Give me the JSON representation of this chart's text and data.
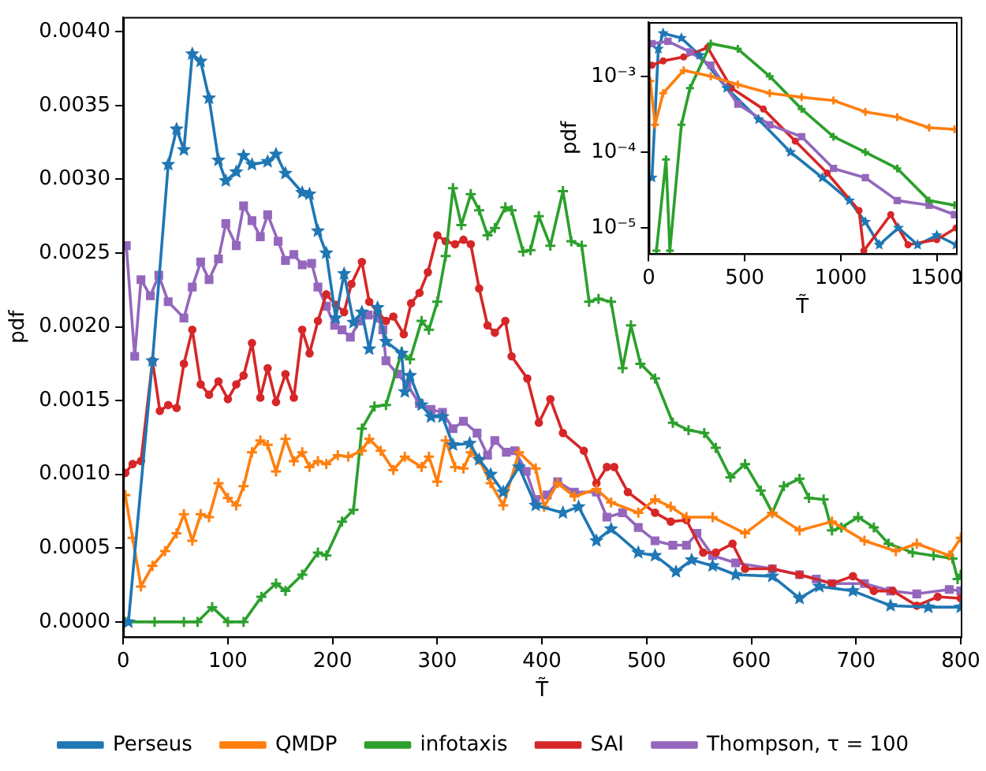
{
  "chart_data": [
    {
      "type": "line",
      "xlabel": "T̃",
      "ylabel": "pdf",
      "xlim": [
        0,
        800
      ],
      "xticks": [
        0,
        100,
        200,
        300,
        400,
        500,
        600,
        700,
        800
      ],
      "ylim": [
        -0.0001,
        0.0041
      ],
      "yticks": [
        {
          "value": 0,
          "label": "0.0000"
        },
        {
          "value": 0.0005,
          "label": "0.0005"
        },
        {
          "value": 0.001,
          "label": "0.0010"
        },
        {
          "value": 0.0015,
          "label": "0.0015"
        },
        {
          "value": 0.002,
          "label": "0.0020"
        },
        {
          "value": 0.0025,
          "label": "0.0025"
        },
        {
          "value": 0.003,
          "label": "0.0030"
        },
        {
          "value": 0.0035,
          "label": "0.0035"
        },
        {
          "value": 0.004,
          "label": "0.0040"
        }
      ],
      "grid": false,
      "legend": "bottom",
      "line_style": "solid",
      "series": [
        {
          "name": "Perseus",
          "color": "#1f77b4",
          "marker": "star",
          "x": [
            5,
            28,
            43,
            51,
            58,
            66,
            74,
            82,
            91,
            98,
            108,
            115,
            123,
            138,
            146,
            155,
            171,
            178,
            186,
            194,
            203,
            211,
            220,
            228,
            235,
            243,
            251,
            266,
            269,
            274,
            285,
            294,
            305,
            315,
            331,
            340,
            351,
            363,
            378,
            394,
            420,
            435,
            452,
            466,
            492,
            508,
            528,
            543,
            563,
            585,
            620,
            646,
            665,
            697,
            733,
            769,
            800
          ],
          "values": [
            0,
            0.00177,
            0.0031,
            0.00334,
            0.0032,
            0.00385,
            0.0038,
            0.00355,
            0.00313,
            0.00299,
            0.00305,
            0.00316,
            0.0031,
            0.00312,
            0.00317,
            0.00304,
            0.00291,
            0.0029,
            0.00265,
            0.0025,
            0.00206,
            0.00236,
            0.00203,
            0.0021,
            0.00185,
            0.00213,
            0.0019,
            0.00182,
            0.00156,
            0.00167,
            0.00147,
            0.00139,
            0.00139,
            0.0012,
            0.00121,
            0.0011,
            0.001,
            0.00088,
            0.00105,
            0.00079,
            0.00074,
            0.00078,
            0.00055,
            0.00063,
            0.00047,
            0.00045,
            0.00034,
            0.00042,
            0.00038,
            0.00032,
            0.00031,
            0.00016,
            0.00024,
            0.00021,
            0.00011,
            0.0001,
            0.0001
          ]
        },
        {
          "name": "QMDP",
          "color": "#ff7f0e",
          "marker": "cross",
          "x": [
            2,
            9,
            17,
            28,
            40,
            51,
            58,
            66,
            74,
            82,
            91,
            100,
            108,
            115,
            123,
            131,
            138,
            146,
            155,
            163,
            171,
            178,
            186,
            194,
            205,
            215,
            228,
            235,
            246,
            258,
            269,
            285,
            292,
            300,
            308,
            317,
            325,
            332,
            340,
            351,
            363,
            378,
            394,
            402,
            415,
            431,
            452,
            466,
            492,
            508,
            523,
            538,
            563,
            594,
            620,
            646,
            677,
            708,
            738,
            758,
            789,
            800
          ],
          "values": [
            0.00086,
            0.00057,
            0.00024,
            0.00038,
            0.00048,
            0.0006,
            0.00073,
            0.00055,
            0.00073,
            0.00071,
            0.00094,
            0.00084,
            0.00079,
            0.00092,
            0.00115,
            0.00123,
            0.0012,
            0.00102,
            0.00124,
            0.00109,
            0.00115,
            0.00105,
            0.00109,
            0.00107,
            0.00113,
            0.00112,
            0.00116,
            0.00124,
            0.00116,
            0.00103,
            0.00112,
            0.00105,
            0.00112,
            0.00095,
            0.00123,
            0.00105,
            0.00104,
            0.00115,
            0.0011,
            0.00094,
            0.00079,
            0.00115,
            0.00104,
            0.00078,
            0.00094,
            0.00085,
            0.0009,
            0.00081,
            0.00074,
            0.00083,
            0.00078,
            0.00071,
            0.00071,
            0.0006,
            0.00074,
            0.00062,
            0.00068,
            0.00055,
            0.00048,
            0.00053,
            0.00045,
            0.00057
          ]
        },
        {
          "name": "infotaxis",
          "color": "#2ca02c",
          "marker": "cross",
          "x": [
            2,
            30,
            58,
            71,
            85,
            100,
            115,
            132,
            146,
            155,
            171,
            186,
            194,
            209,
            220,
            228,
            240,
            251,
            266,
            274,
            285,
            292,
            300,
            308,
            315,
            323,
            332,
            340,
            348,
            355,
            365,
            371,
            382,
            389,
            397,
            408,
            420,
            428,
            438,
            445,
            454,
            466,
            477,
            485,
            494,
            508,
            525,
            540,
            555,
            566,
            580,
            594,
            609,
            620,
            631,
            646,
            655,
            669,
            677,
            686,
            702,
            717,
            731,
            754,
            774,
            792,
            797,
            800
          ],
          "values": [
            0,
            0,
            0,
            0,
            0.0001,
            0,
            0,
            0.00017,
            0.00026,
            0.00021,
            0.00032,
            0.00047,
            0.00045,
            0.00068,
            0.00076,
            0.00131,
            0.00146,
            0.00147,
            0.00183,
            0.00178,
            0.00204,
            0.00198,
            0.00217,
            0.00248,
            0.00294,
            0.00269,
            0.0029,
            0.00279,
            0.00262,
            0.00267,
            0.00281,
            0.00279,
            0.00251,
            0.00252,
            0.00275,
            0.00255,
            0.00292,
            0.00258,
            0.00255,
            0.00217,
            0.00219,
            0.00217,
            0.00172,
            0.00201,
            0.00175,
            0.00165,
            0.00135,
            0.0013,
            0.00128,
            0.00118,
            0.00098,
            0.00107,
            0.00089,
            0.00074,
            0.00092,
            0.00097,
            0.00084,
            0.00083,
            0.00062,
            0.00064,
            0.00071,
            0.00064,
            0.00053,
            0.00047,
            0.00045,
            0.00043,
            0.00029,
            0.00032
          ]
        },
        {
          "name": "SAI",
          "color": "#d62728",
          "marker": "circle",
          "x": [
            2,
            9,
            17,
            28,
            35,
            43,
            51,
            58,
            66,
            74,
            82,
            91,
            100,
            108,
            115,
            123,
            131,
            138,
            146,
            155,
            163,
            171,
            178,
            186,
            194,
            203,
            211,
            218,
            228,
            235,
            243,
            251,
            258,
            268,
            275,
            283,
            291,
            300,
            308,
            317,
            325,
            332,
            340,
            348,
            355,
            365,
            371,
            386,
            397,
            408,
            420,
            440,
            452,
            462,
            469,
            482,
            508,
            523,
            538,
            554,
            566,
            582,
            594,
            620,
            646,
            677,
            697,
            717,
            735,
            758,
            778,
            800
          ],
          "values": [
            0.00101,
            0.00107,
            0.00109,
            0.00177,
            0.00143,
            0.00147,
            0.00145,
            0.00175,
            0.00198,
            0.00161,
            0.00154,
            0.00163,
            0.00151,
            0.00161,
            0.00167,
            0.00189,
            0.00152,
            0.00172,
            0.00149,
            0.00168,
            0.00152,
            0.00198,
            0.00182,
            0.00204,
            0.00222,
            0.00215,
            0.0021,
            0.00229,
            0.00244,
            0.00217,
            0.0021,
            0.00204,
            0.00207,
            0.00195,
            0.00216,
            0.00223,
            0.00237,
            0.00262,
            0.00258,
            0.00256,
            0.00259,
            0.00256,
            0.00226,
            0.00201,
            0.00196,
            0.00204,
            0.0018,
            0.00165,
            0.00135,
            0.00151,
            0.00128,
            0.00116,
            0.00094,
            0.00105,
            0.00105,
            0.00088,
            0.00074,
            0.00068,
            0.00069,
            0.00047,
            0.00047,
            0.00053,
            0.00036,
            0.00036,
            0.00032,
            0.00026,
            0.00031,
            0.00021,
            0.00021,
            0.00011,
            0.00017,
            0.00016
          ]
        },
        {
          "name": "Thompson, τ = 100",
          "color": "#9467bd",
          "marker": "square",
          "x": [
            3,
            11,
            17,
            26,
            34,
            43,
            58,
            66,
            74,
            82,
            91,
            98,
            108,
            115,
            123,
            131,
            138,
            148,
            155,
            163,
            171,
            180,
            186,
            194,
            202,
            209,
            217,
            226,
            234,
            243,
            248,
            251,
            262,
            271,
            283,
            294,
            305,
            315,
            325,
            338,
            348,
            355,
            366,
            374,
            385,
            394,
            405,
            415,
            431,
            452,
            462,
            477,
            492,
            508,
            525,
            538,
            548,
            563,
            585,
            620,
            646,
            662,
            677,
            708,
            733,
            758,
            789,
            800
          ],
          "values": [
            0.00255,
            0.0018,
            0.00232,
            0.00221,
            0.00235,
            0.00217,
            0.00206,
            0.00227,
            0.00244,
            0.00232,
            0.00246,
            0.0027,
            0.00255,
            0.00282,
            0.00272,
            0.00261,
            0.00276,
            0.00258,
            0.00245,
            0.00249,
            0.00242,
            0.00243,
            0.00227,
            0.00214,
            0.00201,
            0.00198,
            0.00193,
            0.00204,
            0.00208,
            0.00206,
            0.00198,
            0.00177,
            0.00168,
            0.00161,
            0.00148,
            0.00144,
            0.00142,
            0.00131,
            0.00136,
            0.00128,
            0.00113,
            0.00123,
            0.00115,
            0.00116,
            0.00102,
            0.00083,
            0.00086,
            0.00095,
            0.00088,
            0.00088,
            0.00071,
            0.00074,
            0.00064,
            0.00055,
            0.00052,
            0.00052,
            0.0006,
            0.00045,
            0.0004,
            0.00036,
            0.00032,
            0.00029,
            0.00026,
            0.00026,
            0.00021,
            0.00019,
            0.00022,
            0.00021
          ]
        }
      ]
    },
    {
      "type": "line",
      "xlabel": "T̃",
      "ylabel": "pdf",
      "xlim": [
        0,
        1600
      ],
      "xticks": [
        0,
        500,
        1000,
        1500
      ],
      "log": "y",
      "ylim": [
        4.6e-06,
        0.0052
      ],
      "yticks": [
        {
          "value": 1e-05,
          "label": "10⁻⁵"
        },
        {
          "value": 0.0001,
          "label": "10⁻⁴"
        },
        {
          "value": 0.001,
          "label": "10⁻³"
        }
      ],
      "grid": false,
      "legend": false,
      "line_style": "solid",
      "series": [
        {
          "color": "#ff7f0e",
          "marker": "cross",
          "x": [
            8,
            33,
            75,
            182,
            323,
            464,
            630,
            796,
            962,
            1128,
            1294,
            1460,
            1592
          ],
          "values": [
            0.00087,
            0.00023,
            0.0006,
            0.0012,
            0.001,
            0.00078,
            0.0006,
            0.00053,
            0.00048,
            0.00034,
            0.00029,
            0.00021,
            0.0002
          ]
        },
        {
          "color": "#2ca02c",
          "marker": "cross",
          "x": [
            40,
            90,
            110,
            170,
            215,
            323,
            464,
            630,
            796,
            962,
            1128,
            1294,
            1460,
            1592
          ],
          "values": [
            5e-06,
            8e-05,
            5e-06,
            0.00023,
            0.0007,
            0.0027,
            0.0023,
            0.001,
            0.00037,
            0.00016,
            0.0001,
            6.1e-05,
            2.3e-05,
            2e-05
          ]
        },
        {
          "color": "#9467bd",
          "marker": "square",
          "x": [
            17,
            100,
            215,
            323,
            464,
            630,
            796,
            962,
            1128,
            1294,
            1460,
            1592
          ],
          "values": [
            0.0027,
            0.0029,
            0.0021,
            0.0014,
            0.00043,
            0.00023,
            0.00016,
            6.1e-05,
            4.6e-05,
            2.3e-05,
            2e-05,
            1.5e-05
          ]
        },
        {
          "color": "#d62728",
          "marker": "circle",
          "x": [
            17,
            75,
            182,
            307,
            431,
            597,
            763,
            929,
            1095,
            1120,
            1260,
            1350,
            1500,
            1600
          ],
          "values": [
            0.0014,
            0.0016,
            0.0018,
            0.0024,
            0.0007,
            0.00037,
            0.00014,
            5.3e-05,
            1.7e-05,
            5e-06,
            1.5e-05,
            6e-06,
            7e-06,
            1e-05
          ]
        },
        {
          "color": "#1f77b4",
          "marker": "star",
          "x": [
            17,
            50,
            75,
            170,
            265,
            406,
            572,
            738,
            904,
            1045,
            1128,
            1200,
            1300,
            1400,
            1500,
            1600
          ],
          "values": [
            4.6e-05,
            0.0023,
            0.0037,
            0.0032,
            0.0019,
            0.0007,
            0.00027,
            0.0001,
            4.6e-05,
            2.3e-05,
            1.2e-05,
            6e-06,
            1e-05,
            6e-06,
            8e-06,
            6e-06
          ]
        }
      ]
    }
  ]
}
